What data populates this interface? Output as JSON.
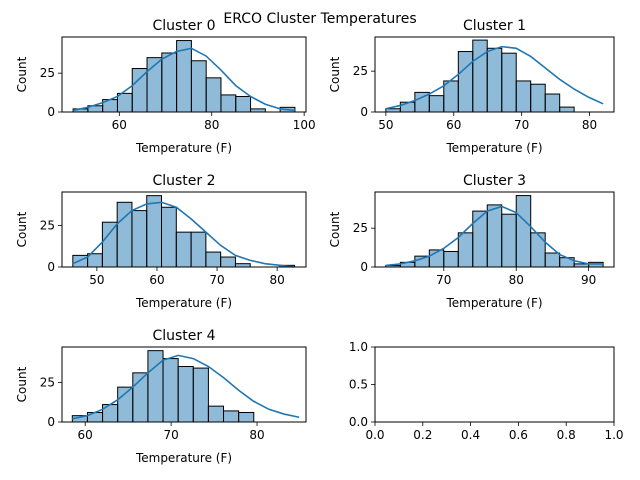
{
  "figure_title": "ERCO Cluster Temperatures",
  "chart_data": [
    {
      "type": "histogram",
      "title": "Cluster 0",
      "xlabel": "Temperature (F)",
      "ylabel": "Count",
      "xlim": [
        47.6,
        100.4
      ],
      "ylim": [
        0,
        48.3
      ],
      "xticks": [
        60,
        80,
        100
      ],
      "yticks": [
        0,
        25
      ],
      "kde": true,
      "bins": {
        "edges": [
          50,
          53.2,
          56.4,
          59.6,
          62.8,
          66,
          69.2,
          72.4,
          75.6,
          78.8,
          82,
          85.2,
          88.4,
          91.6,
          94.8,
          98
        ],
        "counts": [
          2,
          4,
          8,
          12,
          28,
          35,
          38,
          46,
          33,
          22,
          11,
          10,
          2,
          0,
          3
        ]
      },
      "kde_values": [
        1,
        3,
        6,
        10,
        17,
        26,
        34,
        39,
        41,
        36,
        27,
        17,
        10,
        5,
        2,
        1
      ]
    },
    {
      "type": "histogram",
      "title": "Cluster 1",
      "xlabel": "Temperature (F)",
      "ylabel": "Count",
      "xlim": [
        48.4,
        83.6
      ],
      "ylim": [
        0,
        45.9
      ],
      "xticks": [
        50,
        60,
        70,
        80
      ],
      "yticks": [
        0,
        25
      ],
      "kde": true,
      "bins": {
        "edges": [
          50,
          52.13,
          54.27,
          56.4,
          58.53,
          60.67,
          62.8,
          64.93,
          67.07,
          69.2,
          71.33,
          73.47,
          75.6,
          77.73,
          79.87,
          82
        ],
        "counts": [
          2,
          6,
          12,
          10,
          19,
          37,
          44,
          39,
          36,
          19,
          17,
          11,
          3,
          0,
          0
        ]
      },
      "kde_values": [
        2,
        4,
        7,
        11,
        16,
        23,
        31,
        37,
        40,
        39,
        34,
        27,
        20,
        14,
        9,
        5
      ]
    },
    {
      "type": "histogram",
      "title": "Cluster 2",
      "xlabel": "Temperature (F)",
      "ylabel": "Count",
      "xlim": [
        44.2,
        84.8
      ],
      "ylim": [
        0,
        45.2
      ],
      "xticks": [
        50,
        60,
        70,
        80
      ],
      "yticks": [
        0,
        25
      ],
      "kde": true,
      "bins": {
        "edges": [
          46,
          48.46,
          50.92,
          53.38,
          55.84,
          58.3,
          60.76,
          63.22,
          65.68,
          68.14,
          70.6,
          73.06,
          75.52,
          77.98,
          80.44,
          82.9
        ],
        "counts": [
          7,
          8,
          27,
          39,
          34,
          43,
          36,
          21,
          21,
          9,
          6,
          2,
          0,
          0,
          1
        ]
      },
      "kde_values": [
        2,
        6,
        15,
        26,
        34,
        38,
        39,
        36,
        29,
        21,
        13,
        7,
        4,
        2,
        1,
        0
      ]
    },
    {
      "type": "histogram",
      "title": "Cluster 3",
      "xlabel": "Temperature (F)",
      "ylabel": "Count",
      "xlim": [
        60.5,
        93.5
      ],
      "ylim": [
        0,
        48.3
      ],
      "xticks": [
        70,
        80,
        90
      ],
      "yticks": [
        0,
        25
      ],
      "kde": true,
      "bins": {
        "edges": [
          62,
          64,
          66,
          68,
          70,
          72,
          74,
          76,
          78,
          80,
          82,
          84,
          86,
          88,
          90,
          92
        ],
        "counts": [
          1,
          3,
          7,
          11,
          10,
          22,
          36,
          40,
          34,
          46,
          22,
          9,
          6,
          2,
          3
        ]
      },
      "kde_values": [
        1,
        2,
        4,
        7,
        12,
        19,
        28,
        36,
        39,
        35,
        26,
        16,
        8,
        4,
        2,
        2
      ]
    },
    {
      "type": "histogram",
      "title": "Cluster 4",
      "xlabel": "Temperature (F)",
      "ylabel": "Count",
      "xlim": [
        57.3,
        85.7
      ],
      "ylim": [
        0,
        47.3
      ],
      "xticks": [
        60,
        70,
        80
      ],
      "yticks": [
        0,
        25
      ],
      "kde": true,
      "bins": {
        "edges": [
          58.5,
          60.26,
          62.02,
          63.78,
          65.54,
          67.3,
          69.06,
          70.82,
          72.58,
          74.34,
          76.1,
          77.86,
          79.62,
          81.38,
          83.14,
          84.9
        ],
        "counts": [
          4,
          6,
          11,
          22,
          31,
          45,
          40,
          35,
          34,
          10,
          7,
          6,
          0,
          0,
          0
        ]
      },
      "kde_values": [
        2,
        4,
        8,
        14,
        22,
        31,
        39,
        42,
        40,
        35,
        28,
        20,
        13,
        8,
        5,
        3
      ]
    },
    {
      "type": "empty",
      "xlim": [
        0,
        1
      ],
      "ylim": [
        0,
        1
      ],
      "xticks": [
        0.0,
        0.2,
        0.4,
        0.6,
        0.8,
        1.0
      ],
      "yticks": [
        0.0,
        0.5,
        1.0
      ],
      "xtick_labels": [
        "0.0",
        "0.2",
        "0.4",
        "0.6",
        "0.8",
        "1.0"
      ],
      "ytick_labels": [
        "0.0",
        "0.5",
        "1.0"
      ]
    }
  ]
}
